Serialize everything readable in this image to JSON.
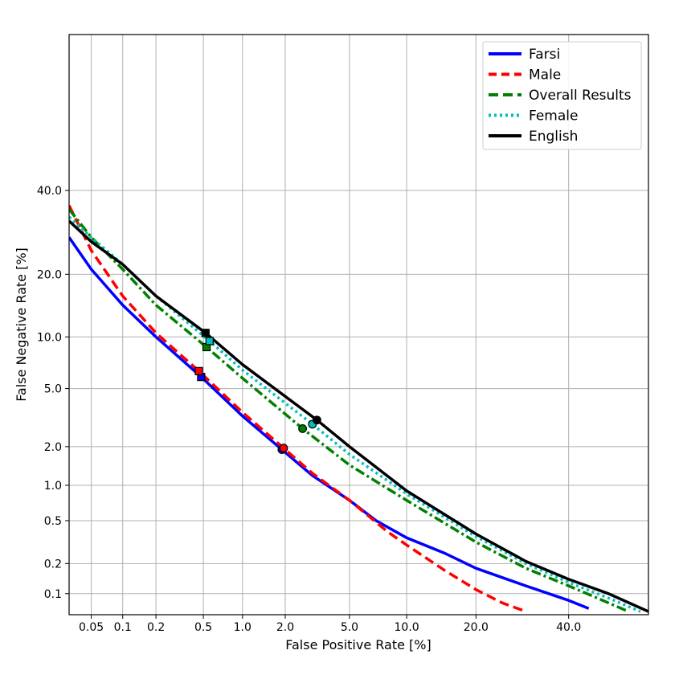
{
  "chart_data": {
    "type": "line",
    "title": "",
    "xlabel": "False Positive Rate [%]",
    "ylabel": "False Negative Rate [%]",
    "x_scale": "probit",
    "y_scale": "probit",
    "xlim": [
      0.03,
      60
    ],
    "ylim": [
      0.06,
      80
    ],
    "xticks": [
      {
        "value": 0.05,
        "label": "0.05"
      },
      {
        "value": 0.1,
        "label": "0.1"
      },
      {
        "value": 0.2,
        "label": "0.2"
      },
      {
        "value": 0.5,
        "label": "0.5"
      },
      {
        "value": 1.0,
        "label": "1.0"
      },
      {
        "value": 2.0,
        "label": "2.0"
      },
      {
        "value": 5.0,
        "label": "5.0"
      },
      {
        "value": 10.0,
        "label": "10.0"
      },
      {
        "value": 20.0,
        "label": "20.0"
      },
      {
        "value": 40.0,
        "label": "40.0"
      }
    ],
    "yticks": [
      {
        "value": 0.1,
        "label": "0.1"
      },
      {
        "value": 0.2,
        "label": "0.2"
      },
      {
        "value": 0.5,
        "label": "0.5"
      },
      {
        "value": 1.0,
        "label": "1.0"
      },
      {
        "value": 2.0,
        "label": "2.0"
      },
      {
        "value": 5.0,
        "label": "5.0"
      },
      {
        "value": 10.0,
        "label": "10.0"
      },
      {
        "value": 20.0,
        "label": "20.0"
      },
      {
        "value": 40.0,
        "label": "40.0"
      }
    ],
    "grid": true,
    "legend_position": "top-right",
    "series": [
      {
        "name": "Farsi",
        "color": "#0000ff",
        "dash": "solid",
        "points": [
          [
            0.03,
            28
          ],
          [
            0.05,
            21
          ],
          [
            0.1,
            14.5
          ],
          [
            0.2,
            10
          ],
          [
            0.48,
            5.9
          ],
          [
            1.0,
            3.3
          ],
          [
            1.9,
            1.9
          ],
          [
            3.0,
            1.2
          ],
          [
            5.0,
            0.75
          ],
          [
            7.0,
            0.5
          ],
          [
            10.0,
            0.35
          ],
          [
            15.0,
            0.25
          ],
          [
            20.0,
            0.18
          ],
          [
            30.0,
            0.12
          ],
          [
            40.0,
            0.085
          ],
          [
            45.0,
            0.07
          ]
        ],
        "markers": [
          {
            "x": 0.48,
            "y": 5.9,
            "shape": "square"
          },
          {
            "x": 1.9,
            "y": 1.9,
            "shape": "circle"
          }
        ]
      },
      {
        "name": "Male",
        "color": "#ff0000",
        "dash": "dashed",
        "points": [
          [
            0.03,
            36
          ],
          [
            0.05,
            25
          ],
          [
            0.1,
            16
          ],
          [
            0.2,
            10.5
          ],
          [
            0.46,
            6.4
          ],
          [
            1.0,
            3.5
          ],
          [
            1.95,
            1.95
          ],
          [
            3.0,
            1.25
          ],
          [
            5.0,
            0.75
          ],
          [
            8.0,
            0.4
          ],
          [
            10.0,
            0.3
          ],
          [
            15.0,
            0.17
          ],
          [
            20.0,
            0.11
          ],
          [
            25.0,
            0.08
          ],
          [
            30.0,
            0.065
          ]
        ],
        "markers": [
          {
            "x": 0.46,
            "y": 6.4,
            "shape": "square"
          },
          {
            "x": 1.95,
            "y": 1.95,
            "shape": "circle"
          }
        ]
      },
      {
        "name": "Overall Results",
        "color": "#008000",
        "dash": "dashdot",
        "points": [
          [
            0.03,
            35
          ],
          [
            0.05,
            28
          ],
          [
            0.1,
            21
          ],
          [
            0.2,
            14.5
          ],
          [
            0.53,
            8.8
          ],
          [
            1.0,
            5.8
          ],
          [
            2.6,
            2.7
          ],
          [
            5.0,
            1.45
          ],
          [
            10.0,
            0.75
          ],
          [
            20.0,
            0.32
          ],
          [
            30.0,
            0.18
          ],
          [
            40.0,
            0.12
          ],
          [
            50.0,
            0.08
          ],
          [
            55.0,
            0.065
          ]
        ],
        "markers": [
          {
            "x": 0.53,
            "y": 8.8,
            "shape": "square"
          },
          {
            "x": 2.6,
            "y": 2.7,
            "shape": "circle"
          }
        ]
      },
      {
        "name": "Female",
        "color": "#00bfbf",
        "dash": "dotted",
        "points": [
          [
            0.03,
            33
          ],
          [
            0.05,
            28
          ],
          [
            0.1,
            22
          ],
          [
            0.2,
            16
          ],
          [
            0.56,
            9.5
          ],
          [
            1.0,
            6.5
          ],
          [
            3.0,
            2.9
          ],
          [
            5.0,
            1.75
          ],
          [
            10.0,
            0.85
          ],
          [
            20.0,
            0.36
          ],
          [
            30.0,
            0.2
          ],
          [
            40.0,
            0.13
          ],
          [
            50.0,
            0.09
          ],
          [
            58.0,
            0.065
          ]
        ],
        "markers": [
          {
            "x": 0.56,
            "y": 9.5,
            "shape": "square"
          },
          {
            "x": 3.0,
            "y": 2.9,
            "shape": "circle"
          }
        ]
      },
      {
        "name": "English",
        "color": "#000000",
        "dash": "solid",
        "points": [
          [
            0.03,
            32
          ],
          [
            0.05,
            27
          ],
          [
            0.1,
            22
          ],
          [
            0.2,
            16
          ],
          [
            0.52,
            10.5
          ],
          [
            1.0,
            7.0
          ],
          [
            3.2,
            3.1
          ],
          [
            5.0,
            2.0
          ],
          [
            10.0,
            0.9
          ],
          [
            20.0,
            0.38
          ],
          [
            30.0,
            0.21
          ],
          [
            40.0,
            0.14
          ],
          [
            50.0,
            0.1
          ],
          [
            60.0,
            0.065
          ]
        ],
        "markers": [
          {
            "x": 0.52,
            "y": 10.5,
            "shape": "square"
          },
          {
            "x": 3.2,
            "y": 3.1,
            "shape": "circle"
          }
        ]
      }
    ]
  }
}
